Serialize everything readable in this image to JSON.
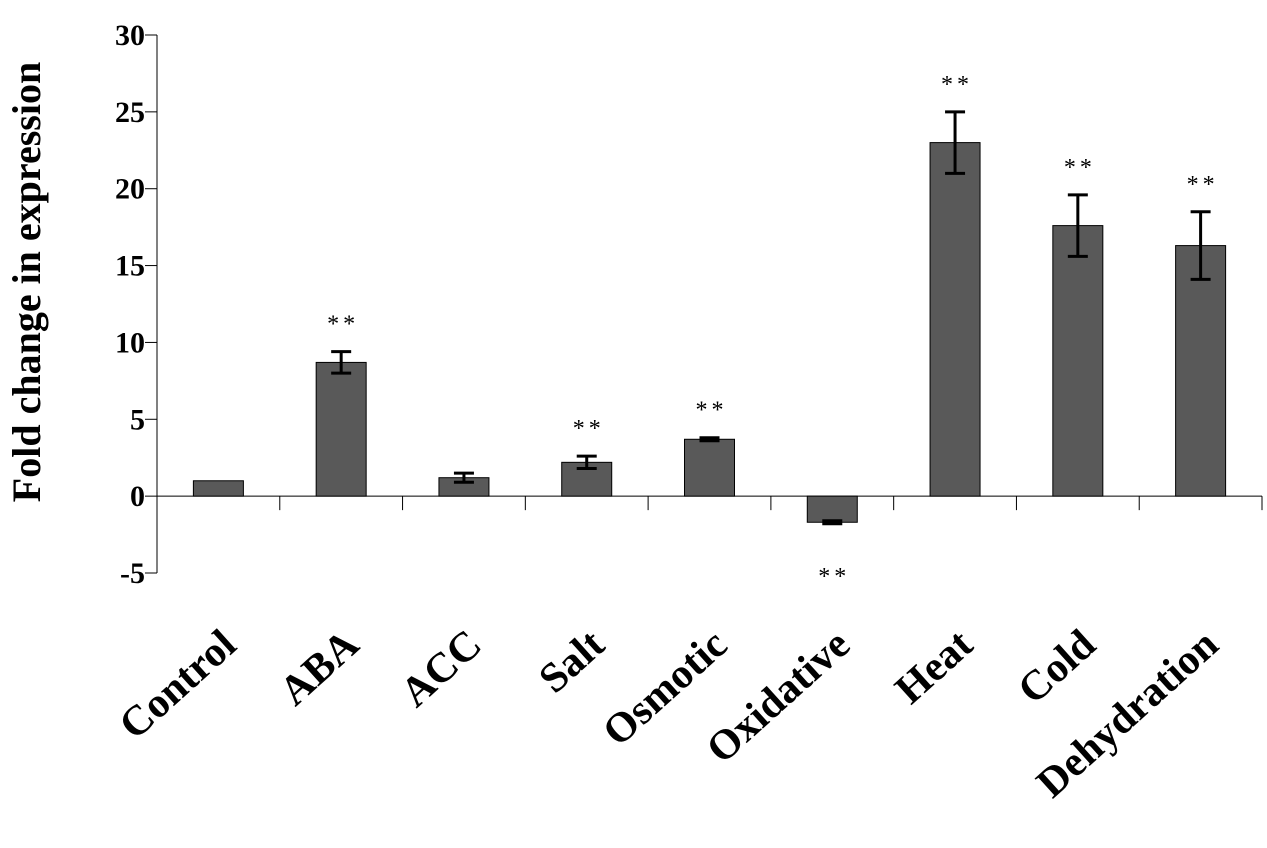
{
  "chart_data": {
    "type": "bar",
    "title": "",
    "xlabel": "",
    "ylabel": "Fold change in expression",
    "ylim": [
      -5,
      30
    ],
    "yticks": [
      30,
      25,
      20,
      15,
      10,
      5,
      0,
      -5
    ],
    "grid": false,
    "legend": "none",
    "bar_color": "#595959",
    "categories": [
      "Control",
      "ABA",
      "ACC",
      "Salt",
      "Osmotic",
      "Oxidative",
      "Heat",
      "Cold",
      "Dehydration"
    ],
    "values": [
      1.0,
      8.7,
      1.2,
      2.2,
      3.7,
      -1.7,
      23.0,
      17.6,
      16.3
    ],
    "errors": [
      0,
      0.7,
      0.3,
      0.4,
      0.1,
      0.1,
      2.0,
      2.0,
      2.2
    ],
    "significance": [
      "",
      "**",
      "",
      "**",
      "**",
      "**",
      "**",
      "**",
      "**"
    ]
  }
}
